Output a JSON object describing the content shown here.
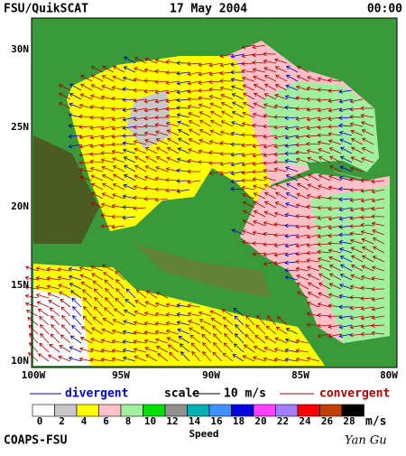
{
  "header": {
    "product": "FSU/QuikSCAT",
    "date": "17 May 2004",
    "time": "00:00"
  },
  "lat_labels": [
    "30N",
    "25N",
    "20N",
    "15N",
    "10N"
  ],
  "lon_labels": [
    "100W",
    "95W",
    "90W",
    "85W",
    "80W"
  ],
  "legend": {
    "divergent": "divergent",
    "scale": "scale",
    "scale_value": "10 m/s",
    "convergent": "convergent"
  },
  "colorbar": {
    "labels": [
      0,
      2,
      4,
      6,
      8,
      10,
      12,
      14,
      16,
      18,
      20,
      22,
      24,
      26,
      28
    ],
    "colors": [
      "#ffffff",
      "#c8c8c8",
      "#ffff00",
      "#ffc0c8",
      "#a0f0a0",
      "#00e000",
      "#909090",
      "#00b0b0",
      "#4090ff",
      "#0000e0",
      "#ff40ff",
      "#a080ff",
      "#ff0000",
      "#c04000",
      "#000000"
    ],
    "unit": "m/s",
    "title": "Speed"
  },
  "footer": {
    "org": "COAPS-FSU",
    "author": "Yan Gu"
  }
}
